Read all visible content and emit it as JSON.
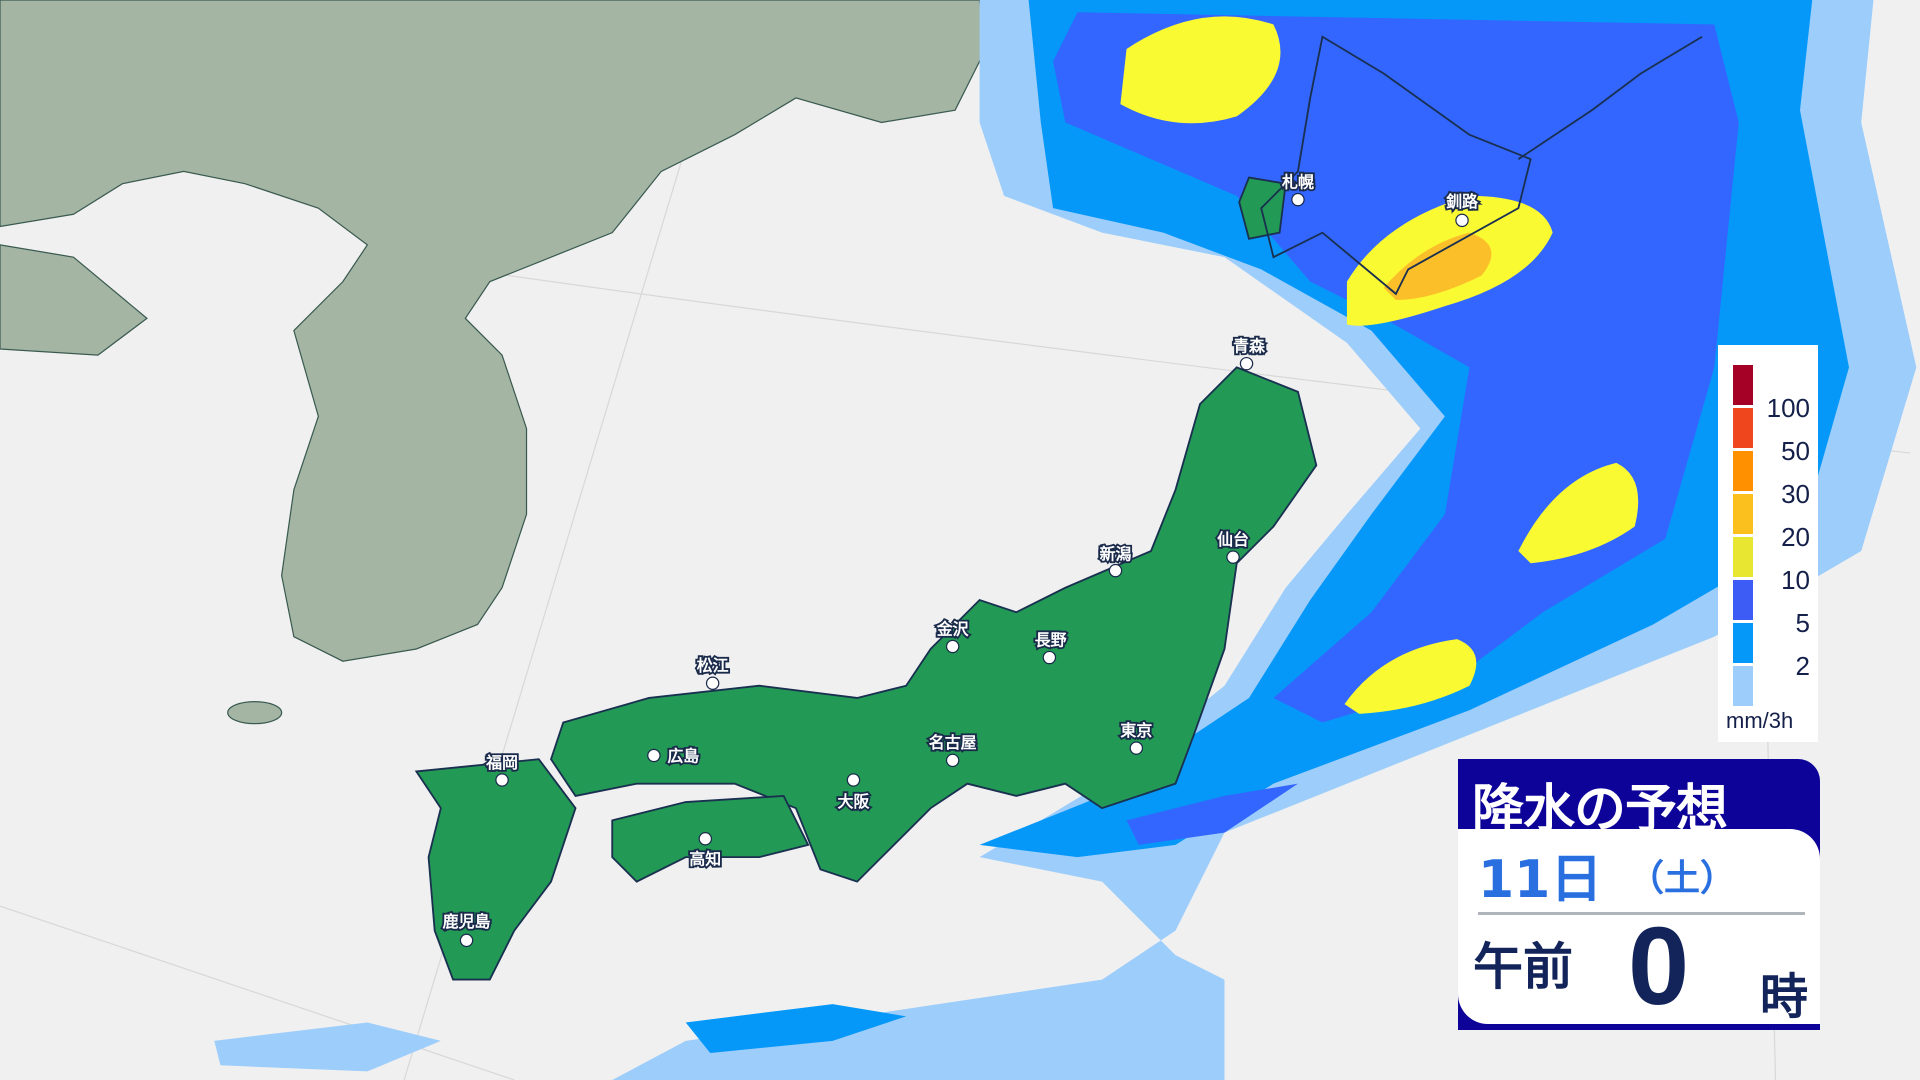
{
  "colors": {
    "background": "#f0f0f0",
    "continent": "#a4b5a4",
    "japan_land": "#229a55",
    "coastline": "#1a3050",
    "precip_light": "#9dcdfb",
    "precip_2": "#0598f8",
    "precip_5": "#3366ff",
    "precip_10": "#fafa33",
    "precip_20": "#fbbf2a",
    "panel_header": "#0d0399"
  },
  "cities": [
    {
      "name": "札幌"
    },
    {
      "name": "釧路"
    },
    {
      "name": "青森"
    },
    {
      "name": "仙台"
    },
    {
      "name": "新潟"
    },
    {
      "name": "金沢"
    },
    {
      "name": "長野"
    },
    {
      "name": "松江"
    },
    {
      "name": "福岡"
    },
    {
      "name": "広島"
    },
    {
      "name": "名古屋"
    },
    {
      "name": "東京"
    },
    {
      "name": "大阪"
    },
    {
      "name": "高知"
    },
    {
      "name": "鹿児島"
    }
  ],
  "legend": {
    "unit": "mm/3h",
    "levels": [
      {
        "label": "100",
        "color": "#a50026"
      },
      {
        "label": "50",
        "color": "#f0461e"
      },
      {
        "label": "30",
        "color": "#ff9100"
      },
      {
        "label": "20",
        "color": "#fbbf1e"
      },
      {
        "label": "10",
        "color": "#e8e630"
      },
      {
        "label": "5",
        "color": "#3c5cf5"
      },
      {
        "label": "2",
        "color": "#0598f8"
      },
      {
        "label": "",
        "color": "#9dcdfb"
      }
    ]
  },
  "panel": {
    "title": "降水の予想",
    "date": "11日",
    "day_of_week": "（土）",
    "ampm": "午前",
    "hour": "0",
    "hour_suffix": "時"
  }
}
